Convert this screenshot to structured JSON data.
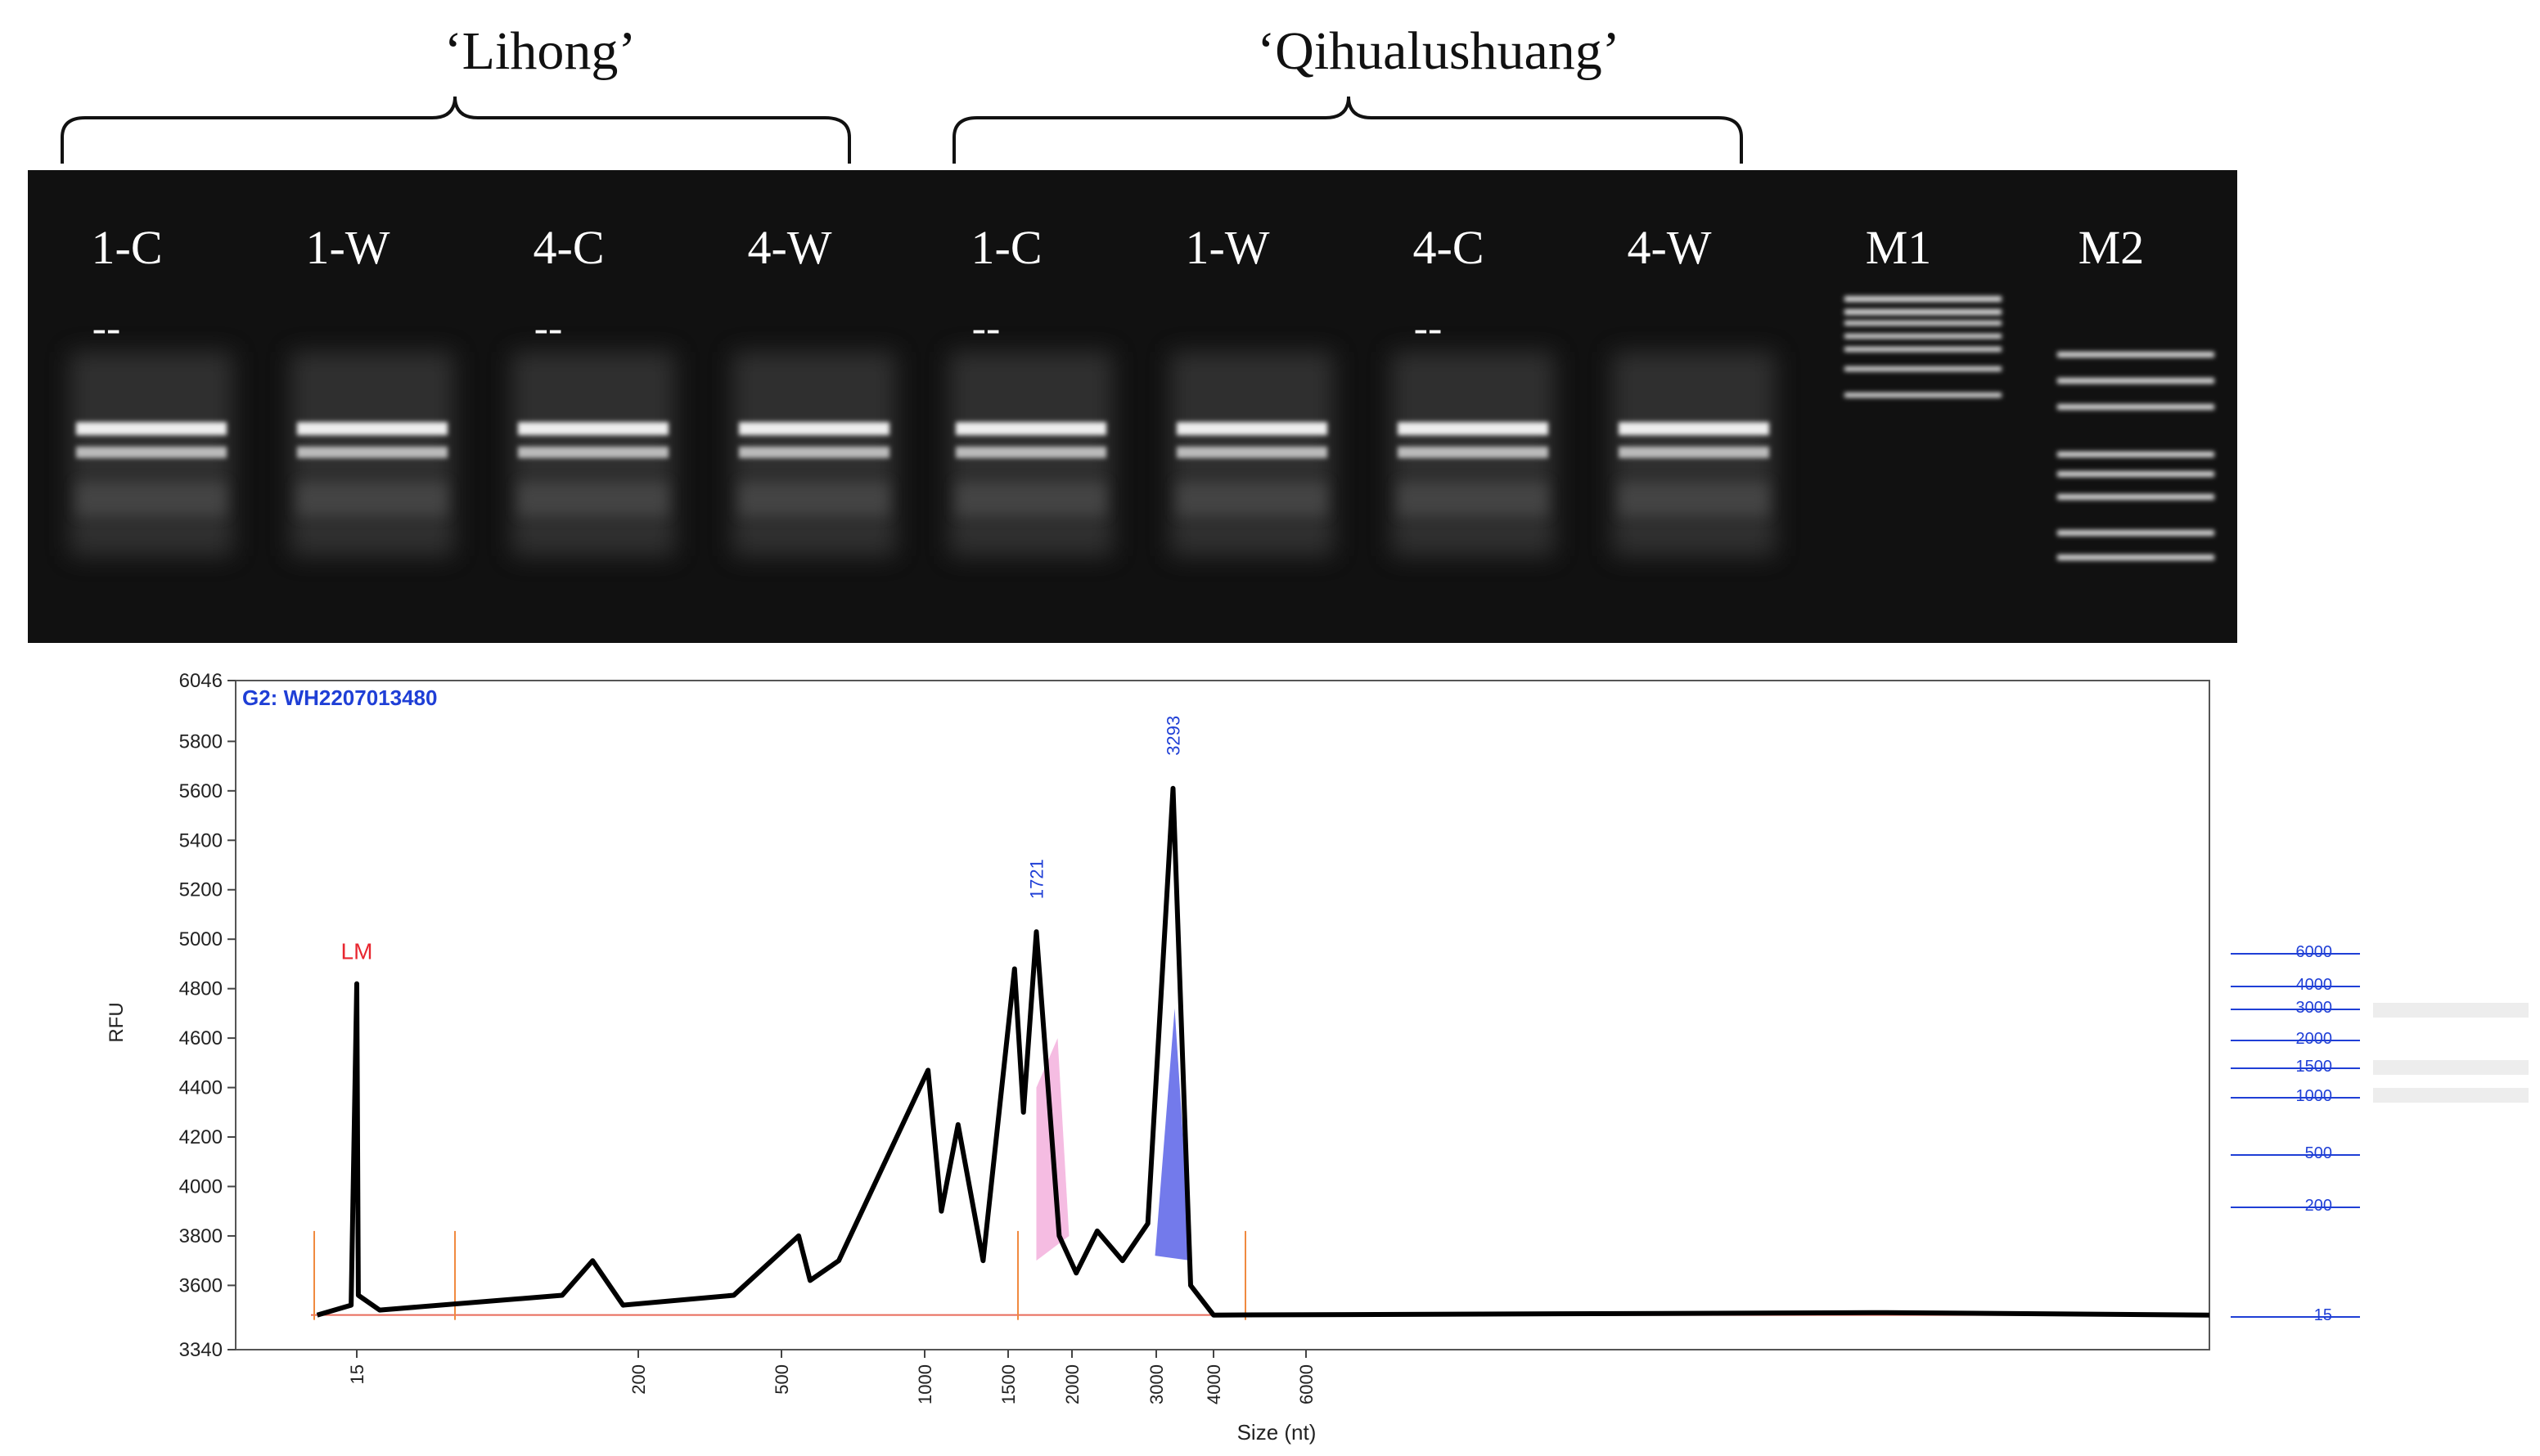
{
  "groups": [
    {
      "label": "‘Lihong’"
    },
    {
      "label": "‘Qihualushuang’"
    }
  ],
  "gel": {
    "lanes": [
      {
        "label": "1-C",
        "mark": "--"
      },
      {
        "label": "1-W",
        "mark": ""
      },
      {
        "label": "4-C",
        "mark": "--"
      },
      {
        "label": "4-W",
        "mark": ""
      },
      {
        "label": "1-C",
        "mark": "--"
      },
      {
        "label": "1-W",
        "mark": ""
      },
      {
        "label": "4-C",
        "mark": "--"
      },
      {
        "label": "4-W",
        "mark": ""
      },
      {
        "label": "M1",
        "mark": ""
      },
      {
        "label": "M2",
        "mark": ""
      }
    ]
  },
  "chart_data": {
    "type": "line",
    "title": "G2: WH2207013480",
    "ylabel": "RFU",
    "xlabel": "Size (nt)",
    "ylim": [
      3340,
      6046
    ],
    "y_ticks": [
      3340,
      3600,
      3800,
      4000,
      4200,
      4400,
      4600,
      4800,
      5000,
      5200,
      5400,
      5600,
      5800,
      6046
    ],
    "x_ticks": [
      "15",
      "200",
      "500",
      "1000",
      "1500",
      "2000",
      "3000",
      "4000",
      "6000"
    ],
    "x_tick_sizes": [
      15,
      200,
      500,
      1000,
      1500,
      2000,
      3000,
      4000,
      6000
    ],
    "baseline": 3480,
    "peaks": [
      {
        "size": 15,
        "rfu": 4820,
        "label": "LM",
        "color": "#e8262f"
      },
      {
        "size": 1721,
        "rfu": 5030,
        "label": "1721",
        "color": "#1f3fd6"
      },
      {
        "size": 3293,
        "rfu": 5610,
        "label": "3293",
        "color": "#1f3fd6"
      }
    ],
    "trace_points": [
      {
        "size": 8,
        "rfu": 3480
      },
      {
        "size": 14,
        "rfu": 3520
      },
      {
        "size": 15,
        "rfu": 4820
      },
      {
        "size": 16,
        "rfu": 3560
      },
      {
        "size": 30,
        "rfu": 3500
      },
      {
        "size": 150,
        "rfu": 3560
      },
      {
        "size": 170,
        "rfu": 3700
      },
      {
        "size": 190,
        "rfu": 3520
      },
      {
        "size": 400,
        "rfu": 3560
      },
      {
        "size": 560,
        "rfu": 3800
      },
      {
        "size": 600,
        "rfu": 3620
      },
      {
        "size": 700,
        "rfu": 3700
      },
      {
        "size": 1020,
        "rfu": 4470
      },
      {
        "size": 1100,
        "rfu": 3900
      },
      {
        "size": 1200,
        "rfu": 4250
      },
      {
        "size": 1350,
        "rfu": 3700
      },
      {
        "size": 1550,
        "rfu": 4880
      },
      {
        "size": 1620,
        "rfu": 4300
      },
      {
        "size": 1721,
        "rfu": 5030
      },
      {
        "size": 1900,
        "rfu": 3800
      },
      {
        "size": 2050,
        "rfu": 3650
      },
      {
        "size": 2300,
        "rfu": 3820
      },
      {
        "size": 2600,
        "rfu": 3700
      },
      {
        "size": 2900,
        "rfu": 3850
      },
      {
        "size": 3293,
        "rfu": 5610
      },
      {
        "size": 3600,
        "rfu": 3600
      },
      {
        "size": 4000,
        "rfu": 3480
      },
      {
        "size": 15000,
        "rfu": 3490
      },
      {
        "size": 20000,
        "rfu": 3480
      }
    ],
    "ladder_ticks": [
      "6000",
      "4000",
      "3000",
      "2000",
      "1500",
      "1000",
      "500",
      "200",
      "15"
    ]
  }
}
